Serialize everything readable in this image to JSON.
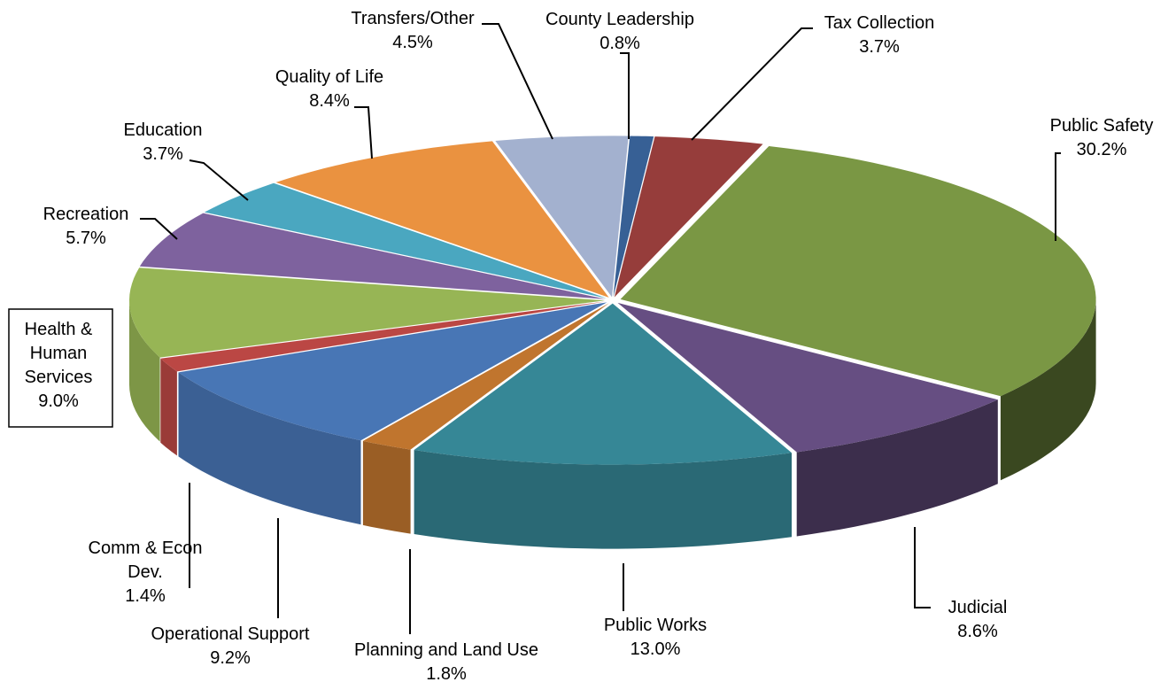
{
  "chart_data": {
    "type": "pie",
    "style": "3d-exploded-perspective",
    "title": "",
    "unit": "%",
    "slices": [
      {
        "label": "County Leadership",
        "value": 0.8,
        "value_label": "0.8%",
        "color": "#376095"
      },
      {
        "label": "Tax Collection",
        "value": 3.7,
        "value_label": "3.7%",
        "color": "#963D3B"
      },
      {
        "label": "Public Safety",
        "value": 30.2,
        "value_label": "30.2%",
        "color": "#7A9744"
      },
      {
        "label": "Judicial",
        "value": 8.6,
        "value_label": "8.6%",
        "color": "#664E82"
      },
      {
        "label": "Public Works",
        "value": 13.0,
        "value_label": "13.0%",
        "color": "#368796"
      },
      {
        "label": "Planning and Land Use",
        "value": 1.8,
        "value_label": "1.8%",
        "color": "#C0752E"
      },
      {
        "label": "Operational Support",
        "value": 9.2,
        "value_label": "9.2%",
        "color": "#4876B5"
      },
      {
        "label": "Comm & Econ Dev.",
        "value": 1.4,
        "value_label": "1.4%",
        "color": "#BB4744"
      },
      {
        "label": "Health & Human Services",
        "value": 9.0,
        "value_label": "9.0%",
        "color": "#97B555"
      },
      {
        "label": "Recreation",
        "value": 5.7,
        "value_label": "5.7%",
        "color": "#7E629E"
      },
      {
        "label": "Education",
        "value": 3.7,
        "value_label": "3.7%",
        "color": "#4AA7C0"
      },
      {
        "label": "Quality of Life",
        "value": 8.4,
        "value_label": "8.4%",
        "color": "#EA9240"
      },
      {
        "label": "Transfers/Other",
        "value": 4.5,
        "value_label": "4.5%",
        "color": "#A3B1CF"
      }
    ],
    "legend": "none",
    "data_labels": "outside-with-leader-lines"
  },
  "label_lines": [
    [
      "County Leadership",
      "0.8%"
    ],
    [
      "Tax Collection",
      "3.7%"
    ],
    [
      "Public Safety",
      "30.2%"
    ],
    [
      "Judicial",
      "8.6%"
    ],
    [
      "Public Works",
      "13.0%"
    ],
    [
      "Planning and Land Use",
      "1.8%"
    ],
    [
      "Operational Support",
      "9.2%"
    ],
    [
      "Comm & Econ",
      "Dev.",
      "1.4%"
    ],
    [
      "Health &",
      "Human",
      "Services",
      "9.0%"
    ],
    [
      "Recreation",
      "5.7%"
    ],
    [
      "Education",
      "3.7%"
    ],
    [
      "Quality of Life",
      "8.4%"
    ],
    [
      "Transfers/Other",
      "4.5%"
    ]
  ]
}
